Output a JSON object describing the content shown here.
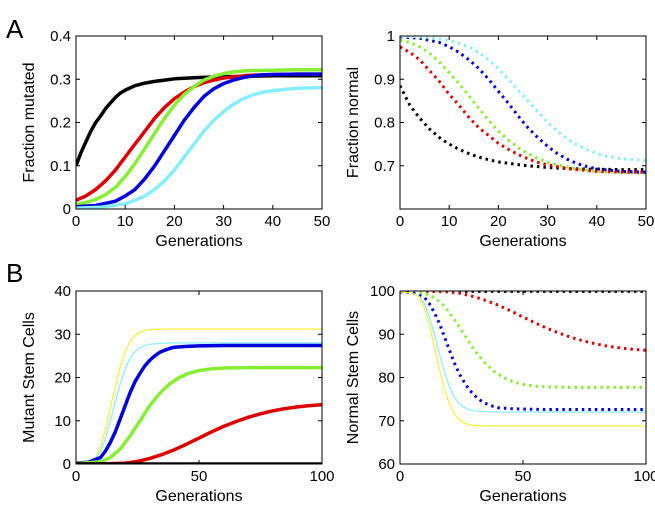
{
  "panel_letters": {
    "a": "A",
    "b": "B"
  },
  "chart_data": [
    {
      "panel": "A",
      "type": "line",
      "xlabel": "Generations",
      "ylabel": "Fraction mutated",
      "xlim": [
        0,
        50
      ],
      "ylim": [
        0,
        0.4
      ],
      "xticks": [
        "0",
        "10",
        "20",
        "30",
        "40",
        "50"
      ],
      "yticks": [
        "0",
        "0.1",
        "0.2",
        "0.3",
        "0.4"
      ],
      "grid": false,
      "series": [
        {
          "color": "#000000",
          "style": "solid",
          "width": 3.5,
          "x": [
            0,
            1,
            2,
            3,
            4,
            5,
            6,
            7,
            8,
            9,
            10,
            12,
            14,
            16,
            18,
            20,
            25,
            30,
            35,
            40,
            45,
            50
          ],
          "y": [
            0.1,
            0.13,
            0.155,
            0.18,
            0.2,
            0.215,
            0.232,
            0.245,
            0.258,
            0.268,
            0.275,
            0.285,
            0.291,
            0.295,
            0.298,
            0.301,
            0.304,
            0.306,
            0.307,
            0.308,
            0.308,
            0.308
          ]
        },
        {
          "color": "#dd0000",
          "style": "solid",
          "width": 3.5,
          "x": [
            0,
            2,
            4,
            6,
            8,
            10,
            12,
            14,
            16,
            18,
            20,
            22,
            24,
            26,
            28,
            30,
            35,
            40,
            45,
            50
          ],
          "y": [
            0.02,
            0.03,
            0.045,
            0.065,
            0.09,
            0.12,
            0.15,
            0.18,
            0.21,
            0.235,
            0.255,
            0.27,
            0.283,
            0.292,
            0.298,
            0.303,
            0.309,
            0.311,
            0.312,
            0.312
          ]
        },
        {
          "color": "#88ee33",
          "style": "solid",
          "width": 3.5,
          "x": [
            0,
            2,
            4,
            6,
            8,
            10,
            12,
            14,
            16,
            18,
            20,
            22,
            24,
            26,
            28,
            30,
            32,
            35,
            40,
            45,
            50
          ],
          "y": [
            0.01,
            0.015,
            0.022,
            0.033,
            0.05,
            0.075,
            0.105,
            0.14,
            0.175,
            0.21,
            0.24,
            0.265,
            0.283,
            0.298,
            0.307,
            0.313,
            0.317,
            0.32,
            0.321,
            0.322,
            0.322
          ]
        },
        {
          "color": "#0000dd",
          "style": "solid",
          "width": 3.5,
          "x": [
            0,
            4,
            8,
            10,
            12,
            14,
            16,
            18,
            20,
            22,
            24,
            26,
            28,
            30,
            32,
            34,
            36,
            38,
            40,
            45,
            50
          ],
          "y": [
            0.005,
            0.008,
            0.018,
            0.03,
            0.045,
            0.07,
            0.1,
            0.135,
            0.17,
            0.205,
            0.235,
            0.26,
            0.278,
            0.29,
            0.298,
            0.304,
            0.308,
            0.31,
            0.311,
            0.312,
            0.312
          ]
        },
        {
          "color": "#88eeff",
          "style": "solid",
          "width": 3.5,
          "x": [
            0,
            5,
            10,
            12,
            14,
            16,
            18,
            20,
            22,
            24,
            26,
            28,
            30,
            32,
            34,
            36,
            38,
            40,
            45,
            50
          ],
          "y": [
            0.002,
            0.004,
            0.012,
            0.02,
            0.03,
            0.045,
            0.065,
            0.09,
            0.12,
            0.15,
            0.18,
            0.205,
            0.225,
            0.242,
            0.255,
            0.264,
            0.27,
            0.274,
            0.279,
            0.281
          ]
        }
      ]
    },
    {
      "panel": "A",
      "type": "line",
      "xlabel": "Generations",
      "ylabel": "Fraction normal",
      "xlim": [
        0,
        50
      ],
      "ylim": [
        0.6,
        1.0
      ],
      "xticks": [
        "0",
        "10",
        "20",
        "30",
        "40",
        "50"
      ],
      "yticks": [
        "0.7",
        "0.8",
        "0.9",
        "1"
      ],
      "grid": false,
      "series": [
        {
          "color": "#000000",
          "style": "dotted",
          "width": 3,
          "x": [
            0,
            2,
            4,
            6,
            8,
            10,
            12,
            14,
            16,
            18,
            20,
            25,
            30,
            35,
            40,
            45,
            50
          ],
          "y": [
            0.885,
            0.84,
            0.81,
            0.785,
            0.765,
            0.75,
            0.738,
            0.728,
            0.72,
            0.714,
            0.709,
            0.701,
            0.696,
            0.693,
            0.692,
            0.691,
            0.691
          ]
        },
        {
          "color": "#dd0000",
          "style": "dotted",
          "width": 3,
          "x": [
            0,
            2,
            4,
            6,
            8,
            10,
            12,
            14,
            16,
            18,
            20,
            22,
            24,
            26,
            28,
            30,
            35,
            40,
            45,
            50
          ],
          "y": [
            0.975,
            0.962,
            0.945,
            0.92,
            0.895,
            0.865,
            0.84,
            0.812,
            0.788,
            0.77,
            0.752,
            0.738,
            0.726,
            0.716,
            0.708,
            0.702,
            0.692,
            0.687,
            0.685,
            0.685
          ]
        },
        {
          "color": "#88ee33",
          "style": "dotted",
          "width": 3,
          "x": [
            0,
            2,
            4,
            6,
            8,
            10,
            12,
            14,
            16,
            18,
            20,
            22,
            24,
            26,
            28,
            30,
            35,
            40,
            45,
            50
          ],
          "y": [
            0.99,
            0.985,
            0.975,
            0.96,
            0.94,
            0.915,
            0.89,
            0.862,
            0.833,
            0.805,
            0.78,
            0.76,
            0.742,
            0.728,
            0.717,
            0.708,
            0.694,
            0.687,
            0.684,
            0.683
          ]
        },
        {
          "color": "#0000dd",
          "style": "dotted",
          "width": 3,
          "x": [
            0,
            4,
            8,
            10,
            12,
            14,
            16,
            18,
            20,
            22,
            24,
            26,
            28,
            30,
            32,
            34,
            36,
            38,
            40,
            45,
            50
          ],
          "y": [
            0.998,
            0.995,
            0.985,
            0.975,
            0.962,
            0.945,
            0.925,
            0.9,
            0.872,
            0.845,
            0.815,
            0.788,
            0.765,
            0.745,
            0.728,
            0.715,
            0.705,
            0.698,
            0.693,
            0.687,
            0.685
          ]
        },
        {
          "color": "#88eeff",
          "style": "dotted",
          "width": 3,
          "x": [
            0,
            5,
            10,
            14,
            16,
            18,
            20,
            22,
            24,
            26,
            28,
            30,
            32,
            34,
            36,
            38,
            40,
            42,
            45,
            50
          ],
          "y": [
            1.0,
            0.998,
            0.99,
            0.975,
            0.962,
            0.945,
            0.925,
            0.9,
            0.875,
            0.85,
            0.825,
            0.8,
            0.78,
            0.762,
            0.748,
            0.737,
            0.728,
            0.722,
            0.716,
            0.712
          ]
        }
      ]
    },
    {
      "panel": "B",
      "type": "line",
      "xlabel": "Generations",
      "ylabel": "Mutant Stem Cells",
      "xlim": [
        0,
        100
      ],
      "ylim": [
        0,
        40
      ],
      "xticks": [
        "0",
        "50",
        "100"
      ],
      "yticks": [
        "0",
        "10",
        "20",
        "30",
        "40"
      ],
      "grid": false,
      "series": [
        {
          "color": "#ffee33",
          "style": "solid",
          "width": 1.2,
          "x": [
            0,
            5,
            8,
            10,
            12,
            14,
            16,
            18,
            20,
            22,
            24,
            26,
            28,
            30,
            35,
            40,
            50,
            60,
            80,
            100
          ],
          "y": [
            0.2,
            0.5,
            1.5,
            4,
            8,
            13,
            18,
            22.5,
            26,
            28.3,
            29.7,
            30.5,
            30.9,
            31.1,
            31.2,
            31.2,
            31.2,
            31.2,
            31.2,
            31.2
          ]
        },
        {
          "color": "#88eeff",
          "style": "solid",
          "width": 1.2,
          "x": [
            0,
            5,
            8,
            10,
            12,
            14,
            16,
            18,
            20,
            22,
            24,
            26,
            28,
            30,
            35,
            40,
            50,
            60,
            80,
            100
          ],
          "y": [
            0.2,
            0.5,
            1.3,
            3,
            6,
            10,
            14.5,
            18.5,
            22,
            24.5,
            26,
            26.9,
            27.4,
            27.7,
            27.9,
            28,
            28,
            28,
            28,
            28
          ]
        },
        {
          "color": "#0000dd",
          "style": "solid",
          "width": 3.5,
          "x": [
            0,
            5,
            10,
            12,
            14,
            16,
            18,
            20,
            22,
            24,
            26,
            28,
            30,
            32,
            34,
            36,
            38,
            40,
            45,
            50,
            60,
            80,
            100
          ],
          "y": [
            0.2,
            0.4,
            1.5,
            3,
            5,
            7.5,
            10.5,
            13.5,
            16.5,
            19,
            21,
            22.7,
            24,
            25,
            25.8,
            26.3,
            26.7,
            27,
            27.2,
            27.3,
            27.4,
            27.4,
            27.4
          ]
        },
        {
          "color": "#88ee33",
          "style": "solid",
          "width": 3.5,
          "x": [
            0,
            10,
            14,
            18,
            22,
            26,
            30,
            34,
            38,
            42,
            46,
            50,
            55,
            60,
            70,
            80,
            100
          ],
          "y": [
            0.1,
            0.5,
            1.5,
            3.5,
            6.5,
            10,
            13.5,
            16.3,
            18.5,
            20,
            21,
            21.6,
            22,
            22.2,
            22.3,
            22.3,
            22.3
          ]
        },
        {
          "color": "#dd0000",
          "style": "solid",
          "width": 3.5,
          "x": [
            0,
            10,
            20,
            25,
            30,
            35,
            40,
            45,
            50,
            55,
            60,
            65,
            70,
            75,
            80,
            85,
            90,
            95,
            100
          ],
          "y": [
            0,
            0,
            0.2,
            0.6,
            1.3,
            2.2,
            3.3,
            4.6,
            6,
            7.4,
            8.7,
            9.8,
            10.8,
            11.6,
            12.3,
            12.8,
            13.2,
            13.5,
            13.7
          ]
        },
        {
          "color": "#000000",
          "style": "solid",
          "width": 3.5,
          "x": [
            0,
            100
          ],
          "y": [
            0,
            0
          ]
        }
      ]
    },
    {
      "panel": "B",
      "type": "line",
      "xlabel": "Generations",
      "ylabel": "Normal Stem Cells",
      "xlim": [
        0,
        100
      ],
      "ylim": [
        60,
        100
      ],
      "xticks": [
        "0",
        "50",
        "100"
      ],
      "yticks": [
        "60",
        "70",
        "80",
        "90",
        "100"
      ],
      "grid": false,
      "series": [
        {
          "color": "#000000",
          "style": "dotted",
          "width": 3,
          "x": [
            0,
            100
          ],
          "y": [
            99.9,
            99.9
          ]
        },
        {
          "color": "#dd0000",
          "style": "dotted",
          "width": 3,
          "x": [
            0,
            10,
            20,
            25,
            30,
            35,
            40,
            45,
            50,
            55,
            60,
            65,
            70,
            75,
            80,
            85,
            90,
            95,
            100
          ],
          "y": [
            100,
            100,
            99.8,
            99.4,
            98.7,
            97.8,
            96.7,
            95.4,
            94,
            92.6,
            91.3,
            90.2,
            89.2,
            88.4,
            87.7,
            87.2,
            86.8,
            86.5,
            86.3
          ]
        },
        {
          "color": "#88ee33",
          "style": "dotted",
          "width": 3,
          "x": [
            0,
            10,
            14,
            18,
            22,
            26,
            30,
            34,
            38,
            42,
            46,
            50,
            55,
            60,
            70,
            80,
            100
          ],
          "y": [
            99.9,
            99.5,
            98.5,
            96.5,
            93.5,
            90,
            86.5,
            83.7,
            81.5,
            80,
            79,
            78.4,
            78,
            77.8,
            77.7,
            77.7,
            77.7
          ]
        },
        {
          "color": "#0000dd",
          "style": "dotted",
          "width": 3,
          "x": [
            0,
            5,
            10,
            12,
            14,
            16,
            18,
            20,
            22,
            24,
            26,
            28,
            30,
            32,
            34,
            36,
            38,
            40,
            45,
            50,
            60,
            80,
            100
          ],
          "y": [
            99.8,
            99.6,
            98.5,
            97,
            95,
            92.5,
            89.5,
            86.5,
            83.5,
            81,
            79,
            77.3,
            76,
            75,
            74.2,
            73.7,
            73.3,
            73,
            72.8,
            72.7,
            72.6,
            72.6,
            72.6
          ]
        },
        {
          "color": "#88eeff",
          "style": "solid",
          "width": 1.2,
          "x": [
            0,
            5,
            8,
            10,
            12,
            14,
            16,
            18,
            20,
            22,
            24,
            26,
            28,
            30,
            35,
            40,
            50,
            60,
            80,
            100
          ],
          "y": [
            99.8,
            99.5,
            98.7,
            97,
            94,
            90,
            85.5,
            81.5,
            78,
            75.5,
            74,
            73.1,
            72.6,
            72.3,
            72.1,
            72,
            72,
            72,
            72,
            72
          ]
        },
        {
          "color": "#ffee33",
          "style": "solid",
          "width": 1.2,
          "x": [
            0,
            5,
            8,
            10,
            12,
            14,
            16,
            18,
            20,
            22,
            24,
            26,
            28,
            30,
            35,
            40,
            50,
            60,
            80,
            100
          ],
          "y": [
            99.8,
            99.5,
            98.5,
            96,
            92,
            87,
            82,
            77.5,
            74,
            71.7,
            70.3,
            69.5,
            69.1,
            68.9,
            68.8,
            68.8,
            68.8,
            68.8,
            68.8,
            68.8
          ]
        }
      ]
    }
  ]
}
